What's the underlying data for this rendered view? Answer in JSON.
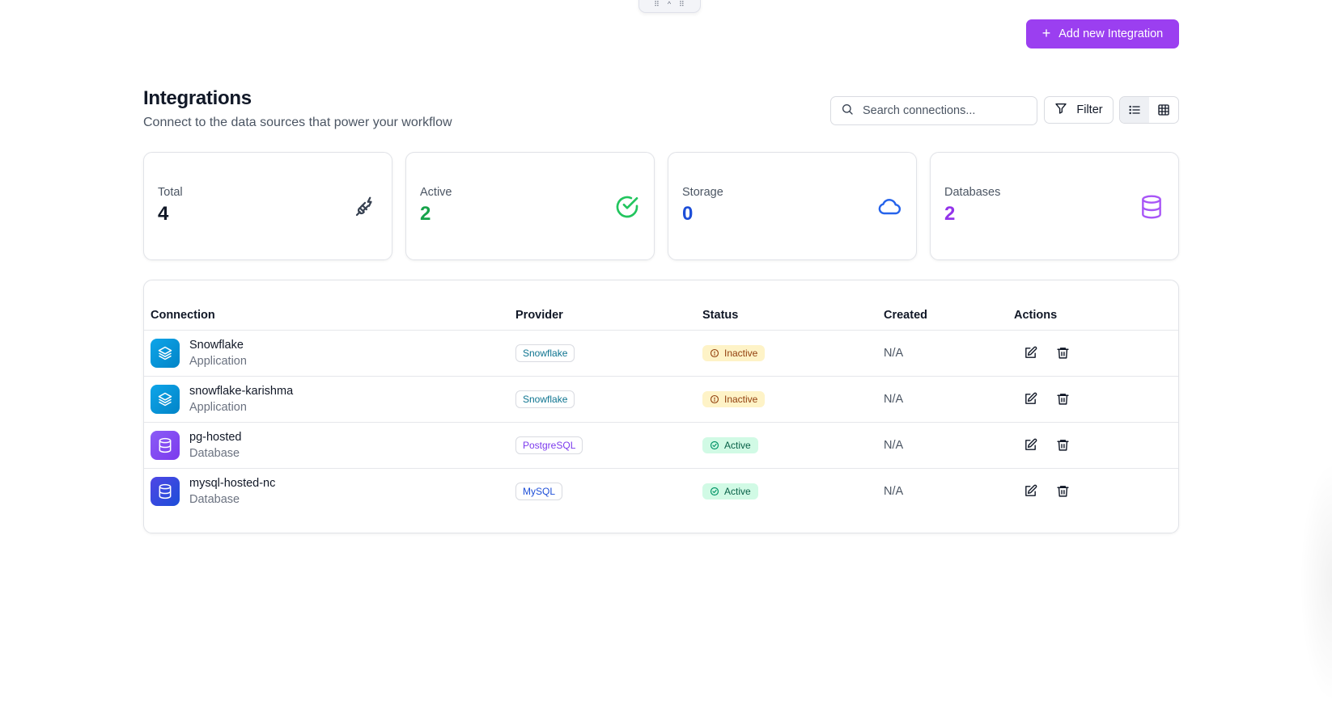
{
  "handle": {
    "left_glyph": "⠿",
    "center_glyph": "^",
    "right_glyph": "⠿"
  },
  "header": {
    "add_button_label": "Add new Integration",
    "title": "Integrations",
    "subtitle": "Connect to the data sources that power your workflow"
  },
  "toolbar": {
    "search_placeholder": "Search connections...",
    "search_value": "",
    "filter_label": "Filter",
    "view_modes": [
      "list",
      "grid"
    ],
    "active_view": "list"
  },
  "stats": [
    {
      "label": "Total",
      "value": "4",
      "icon": "plug-icon",
      "color": "#111827"
    },
    {
      "label": "Active",
      "value": "2",
      "icon": "check-circle-icon",
      "color": "#16a34a"
    },
    {
      "label": "Storage",
      "value": "0",
      "icon": "cloud-icon",
      "color": "#1d4ed8"
    },
    {
      "label": "Databases",
      "value": "2",
      "icon": "database-icon",
      "color": "#9333ea"
    }
  ],
  "table": {
    "columns": [
      "Connection",
      "Provider",
      "Status",
      "Created",
      "Actions"
    ],
    "rows": [
      {
        "name": "Snowflake",
        "type": "Application",
        "provider": "Snowflake",
        "status": "Inactive",
        "created": "N/A",
        "icon": "layers-icon",
        "icon_color": "#0ea5e9"
      },
      {
        "name": "snowflake-karishma",
        "type": "Application",
        "provider": "Snowflake",
        "status": "Inactive",
        "created": "N/A",
        "icon": "layers-icon",
        "icon_color": "#0ea5e9"
      },
      {
        "name": "pg-hosted",
        "type": "Database",
        "provider": "PostgreSQL",
        "status": "Active",
        "created": "N/A",
        "icon": "database-icon",
        "icon_color": "#8b5cf6"
      },
      {
        "name": "mysql-hosted-nc",
        "type": "Database",
        "provider": "MySQL",
        "status": "Active",
        "created": "N/A",
        "icon": "database-icon",
        "icon_color": "#4f46e5"
      }
    ]
  },
  "colors": {
    "accent": "#9b3ff0",
    "inactive_bg": "#fef3c7",
    "active_bg": "#d1fae5",
    "provider_snowflake": "#0e7490",
    "provider_postgresql": "#7c3aed",
    "provider_mysql": "#1d4ed8"
  }
}
